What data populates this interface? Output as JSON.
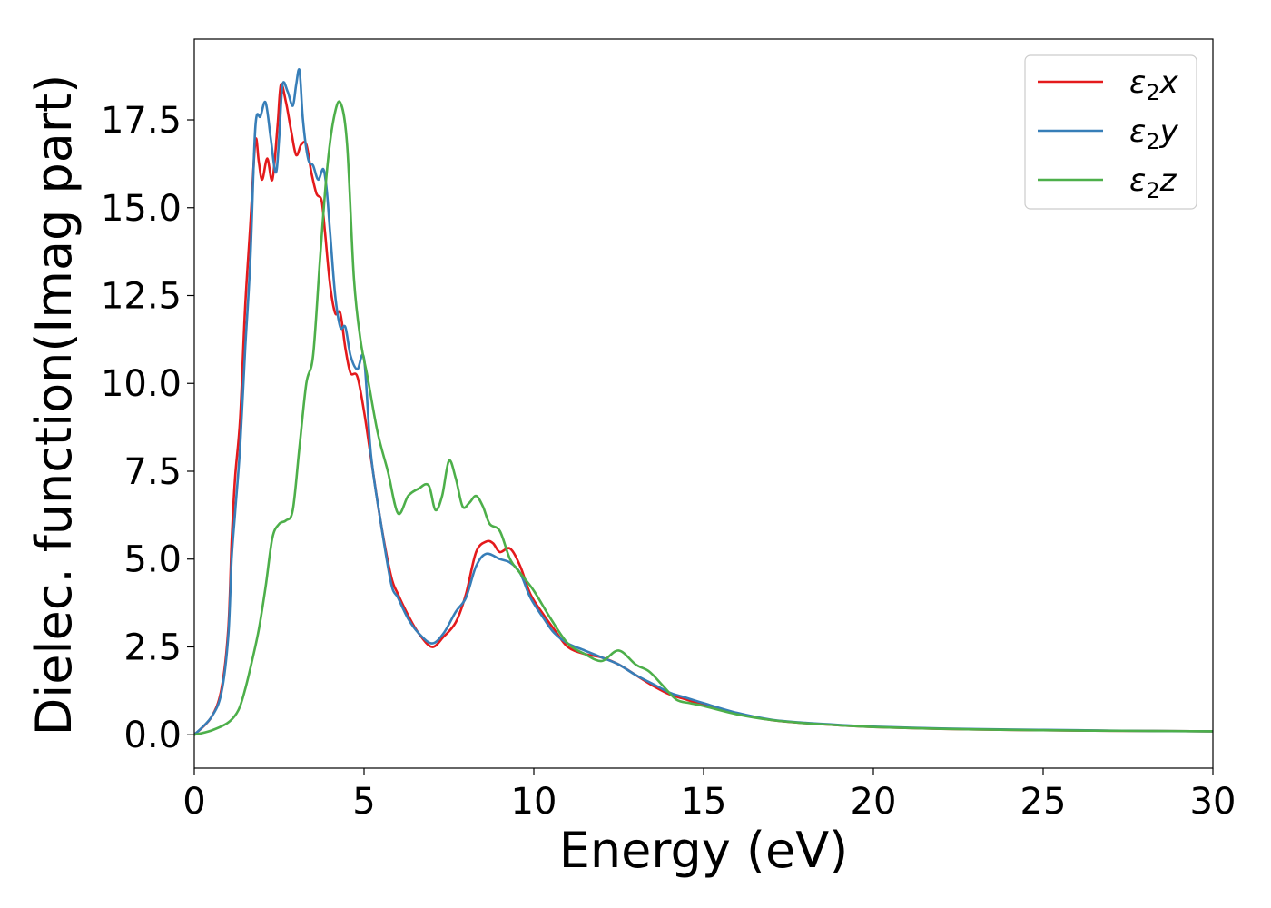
{
  "chart_data": {
    "type": "line",
    "xlabel": "Energy (eV)",
    "ylabel": "Dielec. function(Imag part)",
    "xlim": [
      0,
      30
    ],
    "ylim": [
      -0.95,
      19.8
    ],
    "xticks": [
      0,
      5,
      10,
      15,
      20,
      25,
      30
    ],
    "xtick_labels": [
      "0",
      "5",
      "10",
      "15",
      "20",
      "25",
      "30"
    ],
    "yticks": [
      0.0,
      2.5,
      5.0,
      7.5,
      10.0,
      12.5,
      15.0,
      17.5
    ],
    "ytick_labels": [
      "0.0",
      "2.5",
      "5.0",
      "7.5",
      "10.0",
      "12.5",
      "15.0",
      "17.5"
    ],
    "grid": false,
    "legend_position": "top-right",
    "series": [
      {
        "name": "ε₂x",
        "legend_base": "ε",
        "legend_sub": "2",
        "legend_suffix": "x",
        "color": "#e41a1c",
        "x": [
          0,
          0.5,
          0.8,
          1.0,
          1.1,
          1.2,
          1.35,
          1.5,
          1.65,
          1.8,
          1.9,
          2.0,
          2.15,
          2.3,
          2.45,
          2.55,
          2.7,
          2.85,
          3.0,
          3.15,
          3.3,
          3.45,
          3.6,
          3.75,
          3.85,
          4.0,
          4.15,
          4.3,
          4.45,
          4.6,
          4.8,
          5.0,
          5.2,
          5.5,
          5.8,
          6.0,
          6.3,
          6.6,
          7.0,
          7.35,
          7.7,
          8.0,
          8.3,
          8.6,
          8.8,
          9.0,
          9.3,
          9.6,
          9.9,
          10.3,
          10.6,
          11.0,
          11.5,
          12.0,
          12.5,
          13.0,
          13.5,
          14.0,
          14.5,
          15.0,
          16.0,
          17.0,
          18.0,
          19.0,
          20.0,
          22.0,
          24.0,
          26.0,
          28.0,
          30.0
        ],
        "y": [
          0.0,
          0.5,
          1.3,
          3.0,
          5.5,
          7.3,
          9.0,
          12.2,
          14.5,
          16.9,
          16.3,
          15.8,
          16.4,
          15.8,
          17.3,
          18.5,
          18.0,
          17.2,
          16.5,
          16.8,
          16.8,
          16.0,
          15.4,
          15.2,
          14.3,
          12.8,
          12.0,
          12.0,
          11.0,
          10.3,
          10.2,
          9.2,
          7.9,
          6.0,
          4.5,
          4.0,
          3.4,
          2.9,
          2.5,
          2.8,
          3.2,
          4.0,
          5.2,
          5.5,
          5.45,
          5.2,
          5.3,
          4.8,
          4.0,
          3.4,
          3.0,
          2.5,
          2.3,
          2.2,
          2.0,
          1.7,
          1.4,
          1.15,
          1.0,
          0.85,
          0.6,
          0.42,
          0.33,
          0.27,
          0.22,
          0.17,
          0.14,
          0.12,
          0.11,
          0.1
        ]
      },
      {
        "name": "ε₂y",
        "legend_base": "ε",
        "legend_sub": "2",
        "legend_suffix": "y",
        "color": "#377eb8",
        "x": [
          0,
          0.5,
          0.8,
          1.0,
          1.1,
          1.2,
          1.35,
          1.5,
          1.65,
          1.8,
          1.95,
          2.1,
          2.25,
          2.4,
          2.5,
          2.6,
          2.75,
          2.9,
          3.0,
          3.1,
          3.2,
          3.35,
          3.5,
          3.65,
          3.8,
          3.9,
          4.0,
          4.15,
          4.3,
          4.45,
          4.6,
          4.8,
          5.0,
          5.2,
          5.5,
          5.8,
          6.0,
          6.3,
          6.6,
          7.0,
          7.35,
          7.7,
          8.0,
          8.3,
          8.6,
          9.0,
          9.3,
          9.6,
          9.9,
          10.3,
          10.6,
          11.0,
          11.5,
          12.0,
          12.5,
          13.0,
          13.5,
          14.0,
          14.5,
          15.0,
          16.0,
          17.0,
          18.0,
          19.0,
          20.0,
          22.0,
          24.0,
          26.0,
          28.0,
          30.0
        ],
        "y": [
          0.0,
          0.5,
          1.2,
          2.8,
          5.0,
          6.3,
          8.2,
          11.0,
          13.5,
          17.3,
          17.6,
          18.0,
          17.0,
          16.0,
          17.0,
          18.5,
          18.3,
          17.9,
          18.5,
          18.9,
          17.5,
          16.4,
          16.2,
          15.8,
          16.1,
          15.5,
          14.3,
          12.5,
          11.6,
          11.6,
          10.8,
          10.4,
          10.7,
          8.0,
          6.0,
          4.3,
          3.9,
          3.3,
          2.9,
          2.6,
          2.9,
          3.5,
          3.9,
          4.8,
          5.15,
          5.0,
          4.9,
          4.6,
          3.9,
          3.3,
          2.9,
          2.6,
          2.4,
          2.2,
          2.0,
          1.7,
          1.45,
          1.2,
          1.05,
          0.9,
          0.62,
          0.43,
          0.34,
          0.28,
          0.23,
          0.18,
          0.15,
          0.13,
          0.11,
          0.1
        ]
      },
      {
        "name": "ε₂z",
        "legend_base": "ε",
        "legend_sub": "2",
        "legend_suffix": "z",
        "color": "#4daf4a",
        "x": [
          0,
          0.5,
          1.0,
          1.3,
          1.5,
          1.7,
          1.9,
          2.1,
          2.3,
          2.5,
          2.7,
          2.9,
          3.1,
          3.3,
          3.5,
          3.7,
          3.9,
          4.1,
          4.3,
          4.5,
          4.7,
          4.9,
          5.1,
          5.4,
          5.7,
          6.0,
          6.3,
          6.6,
          6.9,
          7.1,
          7.3,
          7.5,
          7.7,
          7.9,
          8.1,
          8.3,
          8.5,
          8.7,
          9.0,
          9.3,
          9.6,
          10.0,
          10.5,
          11.0,
          11.5,
          12.0,
          12.5,
          13.0,
          13.4,
          13.8,
          14.2,
          14.6,
          15.0,
          16.0,
          17.0,
          18.0,
          19.0,
          20.0,
          22.0,
          24.0,
          26.0,
          28.0,
          30.0
        ],
        "y": [
          0.0,
          0.12,
          0.35,
          0.7,
          1.3,
          2.1,
          3.0,
          4.2,
          5.6,
          6.0,
          6.1,
          6.4,
          8.2,
          10.0,
          10.8,
          13.5,
          16.0,
          17.5,
          18.0,
          16.8,
          13.0,
          11.2,
          10.2,
          8.6,
          7.5,
          6.3,
          6.8,
          7.0,
          7.1,
          6.4,
          6.8,
          7.8,
          7.3,
          6.5,
          6.6,
          6.8,
          6.5,
          6.0,
          5.8,
          5.0,
          4.6,
          4.1,
          3.3,
          2.6,
          2.3,
          2.1,
          2.4,
          2.0,
          1.8,
          1.4,
          1.0,
          0.9,
          0.82,
          0.58,
          0.42,
          0.33,
          0.27,
          0.22,
          0.17,
          0.14,
          0.12,
          0.11,
          0.1
        ]
      }
    ]
  }
}
